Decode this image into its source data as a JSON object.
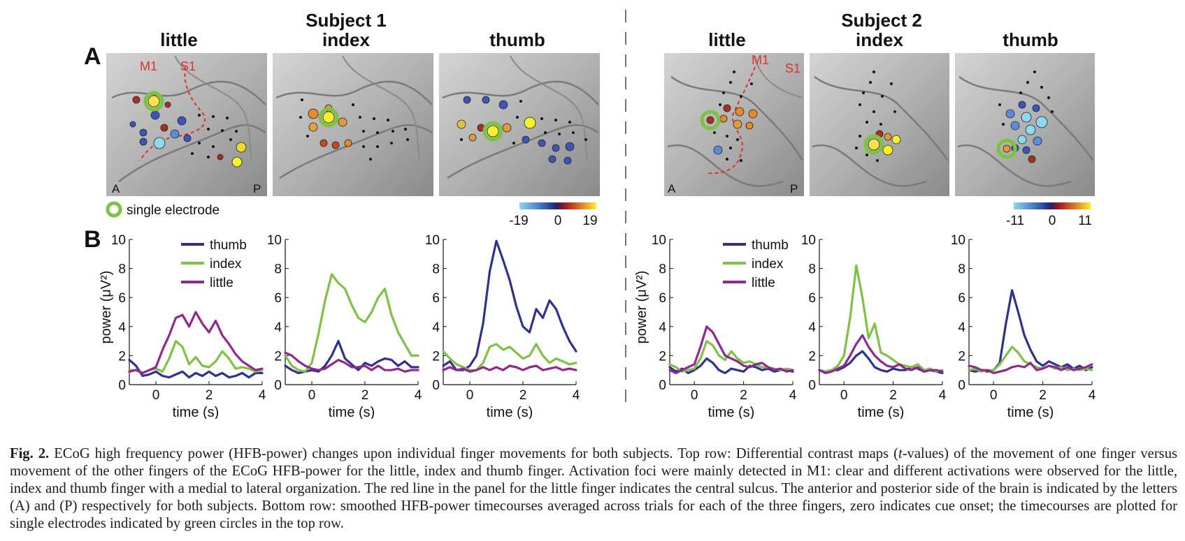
{
  "figure": {
    "subject1_title": "Subject 1",
    "subject2_title": "Subject 2",
    "panel_a_label": "A",
    "panel_b_label": "B",
    "finger_labels": [
      "little",
      "index",
      "thumb"
    ],
    "anat_labels": {
      "m1": "M1",
      "s1": "S1",
      "anterior": "A",
      "posterior": "P"
    },
    "single_electrode_legend": "single electrode",
    "colorbar1": {
      "min": "-19",
      "mid": "0",
      "max": "19"
    },
    "colorbar2": {
      "min": "-11",
      "mid": "0",
      "max": "11"
    },
    "colors": {
      "thumb": "#2e3192",
      "index": "#7dc242",
      "little": "#93278f",
      "marker": "#7dc242",
      "sulcus": "#d9332a"
    },
    "y_axis_label": "power (μV²)",
    "x_axis_label": "time (s)",
    "legend": [
      "thumb",
      "index",
      "little"
    ]
  },
  "chart_data": [
    {
      "type": "line",
      "subject": "Subject 1",
      "finger": "little",
      "x": [
        -1,
        -0.75,
        -0.5,
        -0.25,
        0,
        0.25,
        0.5,
        0.75,
        1,
        1.25,
        1.5,
        1.75,
        2,
        2.25,
        2.5,
        2.75,
        3,
        3.25,
        3.5,
        3.75,
        4
      ],
      "xlim": [
        -1,
        4
      ],
      "ylim": [
        0,
        10
      ],
      "xticks": [
        "0",
        "2",
        "4"
      ],
      "yticks": [
        "0",
        "2",
        "4",
        "6",
        "8",
        "10"
      ],
      "series": [
        {
          "name": "thumb",
          "values": [
            1.7,
            1.3,
            0.6,
            0.7,
            0.9,
            0.6,
            0.5,
            0.7,
            0.9,
            0.5,
            0.8,
            0.6,
            0.9,
            0.6,
            0.8,
            0.5,
            0.6,
            0.8,
            0.5,
            0.8,
            0.8
          ]
        },
        {
          "name": "index",
          "values": [
            1.0,
            1.0,
            0.8,
            1.0,
            1.1,
            0.9,
            1.8,
            3.0,
            2.6,
            1.4,
            1.9,
            1.3,
            1.2,
            1.6,
            2.3,
            1.8,
            1.1,
            1.2,
            1.1,
            0.9,
            1.0
          ]
        },
        {
          "name": "little",
          "values": [
            0.9,
            1.0,
            0.8,
            1.0,
            1.2,
            2.4,
            3.4,
            4.6,
            4.8,
            4.0,
            5.0,
            4.2,
            3.6,
            4.4,
            3.4,
            2.8,
            2.1,
            1.6,
            1.3,
            1.0,
            1.1
          ]
        }
      ]
    },
    {
      "type": "line",
      "subject": "Subject 1",
      "finger": "index",
      "x": [
        -1,
        -0.75,
        -0.5,
        -0.25,
        0,
        0.25,
        0.5,
        0.75,
        1,
        1.25,
        1.5,
        1.75,
        2,
        2.25,
        2.5,
        2.75,
        3,
        3.25,
        3.5,
        3.75,
        4
      ],
      "xlim": [
        -1,
        4
      ],
      "ylim": [
        0,
        10
      ],
      "xticks": [
        "0",
        "2",
        "4"
      ],
      "yticks": [
        "0",
        "2",
        "4",
        "6",
        "8",
        "10"
      ],
      "series": [
        {
          "name": "thumb",
          "values": [
            1.3,
            1.0,
            0.8,
            0.9,
            1.0,
            0.9,
            1.3,
            2.0,
            3.0,
            1.8,
            1.4,
            1.0,
            1.5,
            1.3,
            1.6,
            1.8,
            1.7,
            1.3,
            1.6,
            1.2,
            1.2
          ]
        },
        {
          "name": "index",
          "values": [
            2.0,
            1.3,
            1.0,
            0.9,
            1.5,
            3.5,
            5.8,
            7.6,
            7.0,
            6.6,
            5.5,
            4.6,
            4.3,
            5.0,
            6.0,
            6.6,
            4.8,
            3.6,
            2.8,
            2.0,
            2.0
          ]
        },
        {
          "name": "little",
          "values": [
            2.2,
            2.0,
            1.6,
            1.3,
            1.1,
            1.0,
            1.1,
            1.4,
            1.7,
            1.5,
            1.2,
            1.2,
            1.3,
            1.0,
            1.3,
            1.0,
            1.0,
            1.1,
            0.9,
            1.0,
            1.0
          ]
        }
      ]
    },
    {
      "type": "line",
      "subject": "Subject 1",
      "finger": "thumb",
      "x": [
        -1,
        -0.75,
        -0.5,
        -0.25,
        0,
        0.25,
        0.5,
        0.75,
        1,
        1.25,
        1.5,
        1.75,
        2,
        2.25,
        2.5,
        2.75,
        3,
        3.25,
        3.5,
        3.75,
        4
      ],
      "xlim": [
        -1,
        4
      ],
      "ylim": [
        0,
        10
      ],
      "xticks": [
        "0",
        "2",
        "4"
      ],
      "yticks": [
        "0",
        "2",
        "4",
        "6",
        "8",
        "10"
      ],
      "series": [
        {
          "name": "thumb",
          "values": [
            1.3,
            1.6,
            1.0,
            1.0,
            1.3,
            2.0,
            4.2,
            7.8,
            9.9,
            8.6,
            7.2,
            5.4,
            4.0,
            3.6,
            5.2,
            4.6,
            5.8,
            5.2,
            4.0,
            3.0,
            2.3
          ]
        },
        {
          "name": "index",
          "values": [
            2.3,
            1.8,
            1.4,
            1.2,
            1.0,
            1.0,
            1.5,
            2.6,
            2.8,
            2.4,
            2.6,
            2.2,
            1.8,
            2.0,
            2.8,
            2.0,
            1.5,
            1.8,
            1.6,
            1.4,
            1.5
          ]
        },
        {
          "name": "little",
          "values": [
            1.0,
            1.2,
            1.0,
            1.1,
            0.9,
            1.0,
            1.2,
            1.0,
            1.2,
            1.0,
            1.3,
            1.2,
            1.0,
            1.2,
            1.3,
            1.0,
            1.1,
            1.2,
            1.0,
            1.1,
            1.0
          ]
        }
      ]
    },
    {
      "type": "line",
      "subject": "Subject 2",
      "finger": "little",
      "x": [
        -1,
        -0.75,
        -0.5,
        -0.25,
        0,
        0.25,
        0.5,
        0.75,
        1,
        1.25,
        1.5,
        1.75,
        2,
        2.25,
        2.5,
        2.75,
        3,
        3.25,
        3.5,
        3.75,
        4
      ],
      "xlim": [
        -1,
        4
      ],
      "ylim": [
        0,
        10
      ],
      "xticks": [
        "0",
        "2",
        "4"
      ],
      "yticks": [
        "0",
        "2",
        "4",
        "6",
        "8",
        "10"
      ],
      "series": [
        {
          "name": "thumb",
          "values": [
            1.2,
            0.9,
            1.1,
            0.8,
            1.0,
            1.3,
            1.8,
            1.5,
            1.0,
            0.8,
            1.1,
            1.0,
            0.9,
            1.3,
            1.2,
            1.0,
            1.1,
            0.9,
            1.0,
            1.0,
            0.9
          ]
        },
        {
          "name": "index",
          "values": [
            1.4,
            1.2,
            0.9,
            1.0,
            1.1,
            1.8,
            3.0,
            2.7,
            2.0,
            1.7,
            2.3,
            1.8,
            1.5,
            1.6,
            1.4,
            1.2,
            1.2,
            1.1,
            1.0,
            1.1,
            1.0
          ]
        },
        {
          "name": "little",
          "values": [
            1.0,
            0.8,
            1.0,
            1.2,
            1.4,
            2.6,
            4.0,
            3.6,
            2.8,
            2.0,
            1.8,
            1.6,
            1.3,
            1.2,
            1.4,
            1.5,
            1.2,
            1.0,
            1.1,
            0.9,
            1.0
          ]
        }
      ]
    },
    {
      "type": "line",
      "subject": "Subject 2",
      "finger": "index",
      "x": [
        -1,
        -0.75,
        -0.5,
        -0.25,
        0,
        0.25,
        0.5,
        0.75,
        1,
        1.25,
        1.5,
        1.75,
        2,
        2.25,
        2.5,
        2.75,
        3,
        3.25,
        3.5,
        3.75,
        4
      ],
      "xlim": [
        -1,
        4
      ],
      "ylim": [
        0,
        10
      ],
      "xticks": [
        "0",
        "2",
        "4"
      ],
      "yticks": [
        "0",
        "2",
        "4",
        "6",
        "8",
        "10"
      ],
      "series": [
        {
          "name": "thumb",
          "values": [
            1.0,
            0.9,
            1.0,
            1.0,
            1.2,
            1.5,
            2.0,
            2.3,
            1.8,
            1.2,
            1.0,
            0.9,
            1.1,
            1.0,
            1.0,
            1.2,
            1.1,
            0.9,
            1.0,
            0.9,
            0.8
          ]
        },
        {
          "name": "index",
          "values": [
            1.0,
            0.9,
            1.0,
            1.3,
            2.0,
            4.6,
            8.2,
            6.0,
            3.2,
            4.2,
            2.2,
            2.0,
            1.7,
            1.4,
            1.3,
            1.2,
            1.4,
            1.0,
            1.1,
            0.9,
            1.0
          ]
        },
        {
          "name": "little",
          "values": [
            1.0,
            0.8,
            0.9,
            1.1,
            1.3,
            2.0,
            2.8,
            3.4,
            2.6,
            2.0,
            1.6,
            1.3,
            1.2,
            1.4,
            1.1,
            1.0,
            1.2,
            0.9,
            1.0,
            1.0,
            0.9
          ]
        }
      ]
    },
    {
      "type": "line",
      "subject": "Subject 2",
      "finger": "thumb",
      "x": [
        -1,
        -0.75,
        -0.5,
        -0.25,
        0,
        0.25,
        0.5,
        0.75,
        1,
        1.25,
        1.5,
        1.75,
        2,
        2.25,
        2.5,
        2.75,
        3,
        3.25,
        3.5,
        3.75,
        4
      ],
      "xlim": [
        -1,
        4
      ],
      "ylim": [
        0,
        10
      ],
      "xticks": [
        "0",
        "2",
        "4"
      ],
      "yticks": [
        "0",
        "2",
        "4",
        "6",
        "8",
        "10"
      ],
      "series": [
        {
          "name": "thumb",
          "values": [
            1.0,
            0.9,
            1.0,
            0.9,
            1.0,
            1.5,
            4.2,
            6.5,
            5.0,
            3.4,
            2.4,
            1.6,
            1.3,
            1.6,
            1.4,
            1.2,
            1.4,
            1.1,
            1.3,
            1.0,
            1.2
          ]
        },
        {
          "name": "index",
          "values": [
            1.0,
            1.1,
            0.9,
            1.0,
            1.0,
            1.4,
            2.0,
            2.6,
            2.2,
            1.6,
            1.4,
            1.2,
            1.1,
            1.3,
            1.1,
            1.2,
            1.0,
            1.1,
            1.0,
            1.1,
            1.0
          ]
        },
        {
          "name": "little",
          "values": [
            1.3,
            1.2,
            1.0,
            1.0,
            0.8,
            0.9,
            1.0,
            1.2,
            1.3,
            1.2,
            1.5,
            1.0,
            1.1,
            1.3,
            1.2,
            1.0,
            1.2,
            1.0,
            1.1,
            1.2,
            1.4
          ]
        }
      ]
    }
  ],
  "caption": {
    "label": "Fig. 2.",
    "part1": " ECoG high frequency power (HFB-power) changes upon individual finger movements for both subjects. Top row: Differential contrast maps (",
    "italic": "t",
    "part2": "-values) of the movement of one finger versus movement of the other fingers of the ECoG HFB-power for the little, index and thumb finger. Activation foci were mainly detected in M1: clear and different activations were observed for the little, index and thumb finger with a medial to lateral organization. The red line in the panel for the little finger indicates the central sulcus. The anterior and posterior side of the brain is indicated by the letters (A) and (P) respectively for both subjects. Bottom row: smoothed HFB-power timecourses averaged across trials for each of the three fingers, zero indicates cue onset; the timecourses are plotted for single electrodes indicated by green circles in the top row."
  }
}
